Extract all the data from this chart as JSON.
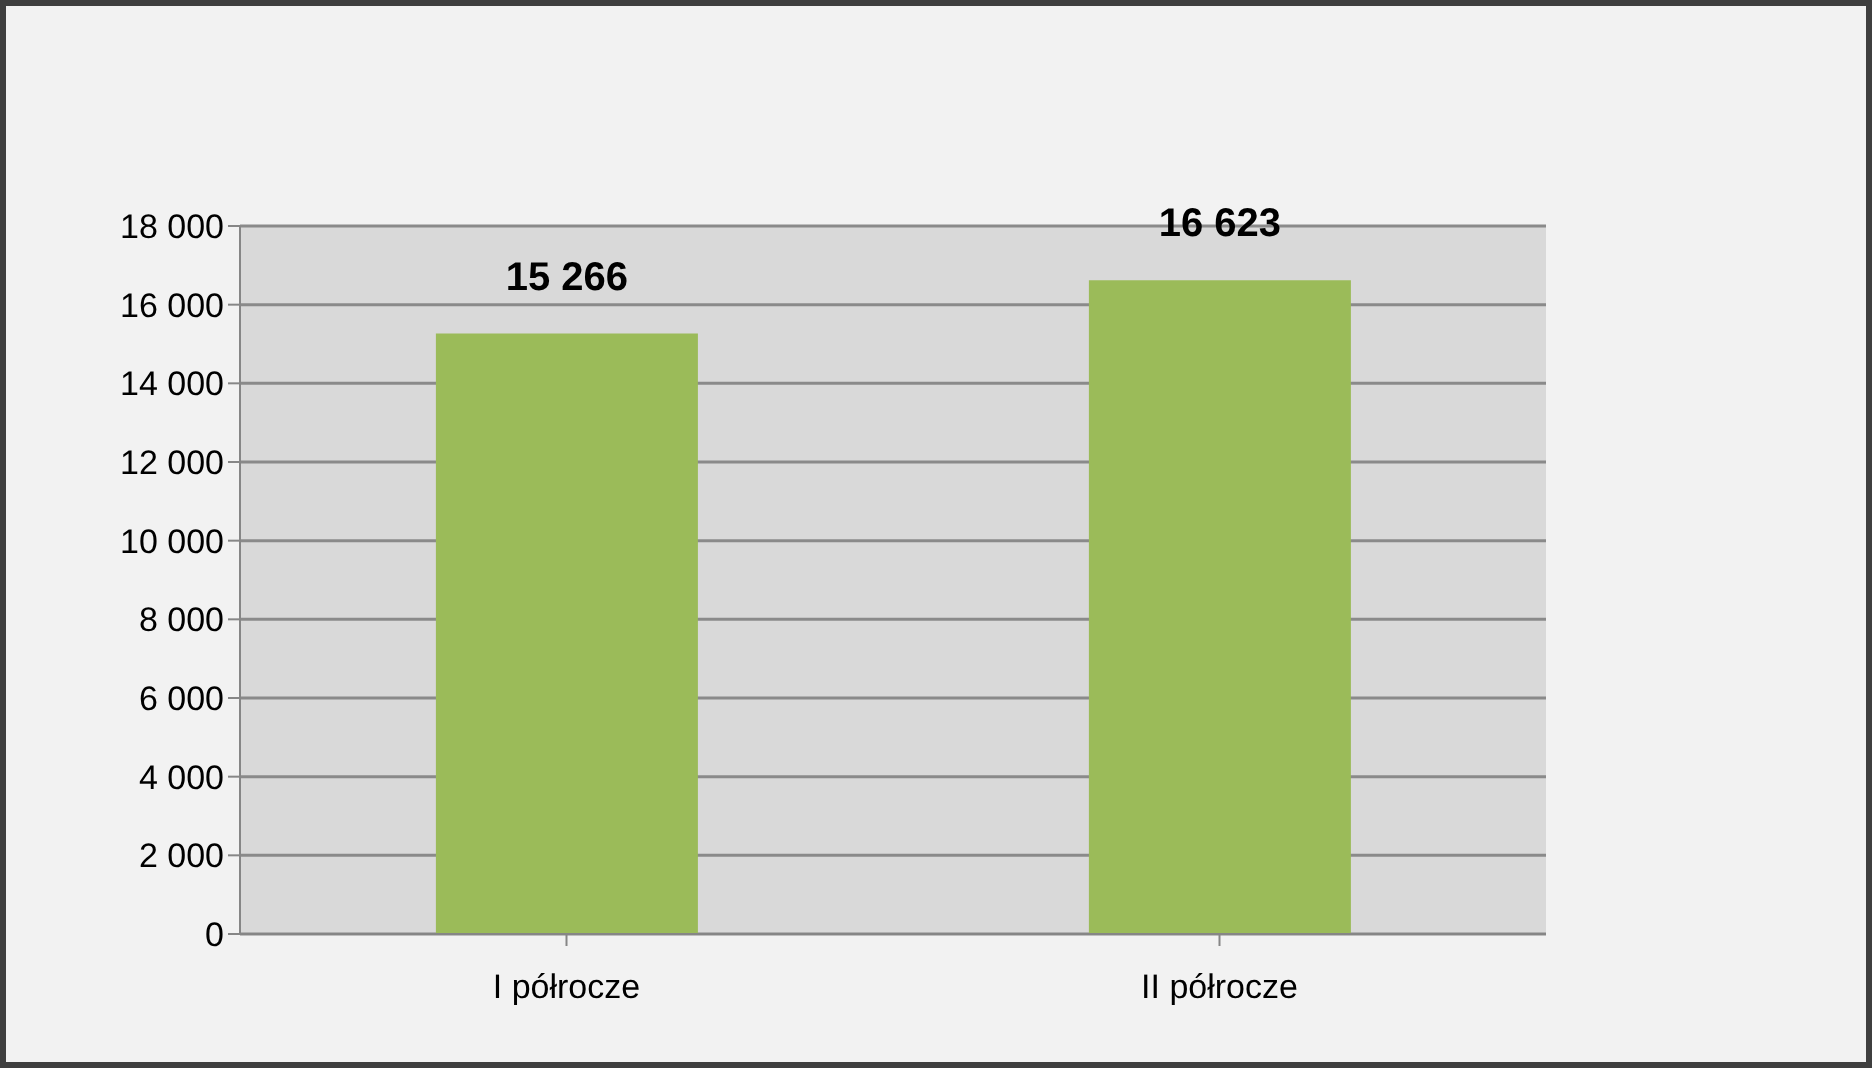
{
  "chart_data": {
    "type": "bar",
    "categories": [
      "I półrocze",
      "II półrocze"
    ],
    "values": [
      15266,
      16623
    ],
    "value_labels": [
      "15 266",
      "16 623"
    ],
    "color": "#9bbb59",
    "ylim": [
      0,
      18000
    ],
    "yticks": [
      0,
      {
        "value": 2000,
        "label": "2 000"
      },
      {
        "value": 4000,
        "label": "4 000"
      },
      {
        "value": 6000,
        "label": "6 000"
      },
      {
        "value": 8000,
        "label": "8 000"
      },
      {
        "value": 10000,
        "label": "10 000"
      },
      {
        "value": 12000,
        "label": "12 000"
      },
      {
        "value": 14000,
        "label": "14 000"
      },
      {
        "value": 16000,
        "label": "16 000"
      },
      {
        "value": 18000,
        "label": "18 000"
      }
    ],
    "grid": "y"
  }
}
